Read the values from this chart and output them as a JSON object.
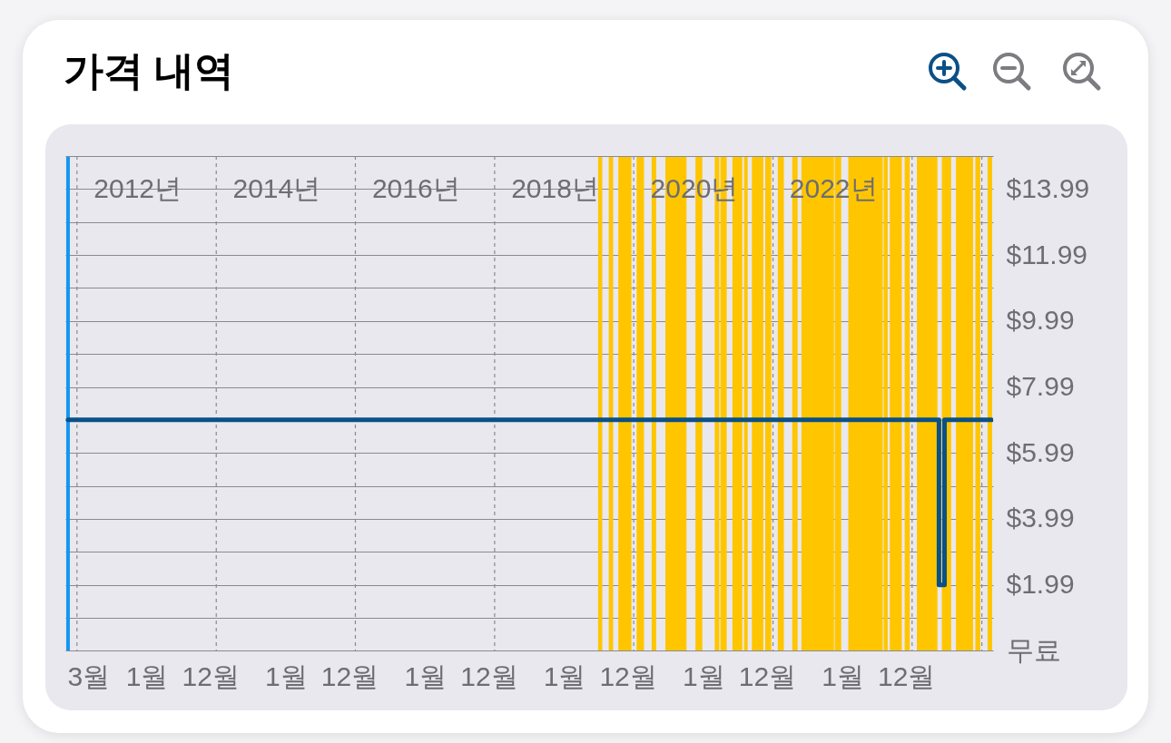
{
  "chart_data": {
    "type": "step",
    "title": "가격 내역",
    "x": [
      "2011-11-15",
      "2024-05-21",
      "2024-06-19",
      "2025-02-22"
    ],
    "values": [
      6.99,
      1.99,
      6.99,
      6.99
    ],
    "color": "#0b5087",
    "xlim": [
      "2011-11-01",
      "2025-03-01"
    ],
    "xticks": [
      {
        "value": "2012-03-01",
        "label": "3월"
      },
      {
        "value": "2013-01-01",
        "label": "1월"
      },
      {
        "value": "2013-12-01",
        "label": "12월"
      },
      {
        "value": "2015-01-01",
        "label": "1월"
      },
      {
        "value": "2015-12-01",
        "label": "12월"
      },
      {
        "value": "2017-01-01",
        "label": "1월"
      },
      {
        "value": "2017-12-01",
        "label": "12월"
      },
      {
        "value": "2019-01-01",
        "label": "1월"
      },
      {
        "value": "2019-12-01",
        "label": "12월"
      },
      {
        "value": "2021-01-01",
        "label": "1월"
      },
      {
        "value": "2021-12-01",
        "label": "12월"
      },
      {
        "value": "2023-01-01",
        "label": "1월"
      },
      {
        "value": "2023-12-01",
        "label": "12월"
      }
    ],
    "x2lim": [
      "2011-11-01",
      "2025-03-01"
    ],
    "x2ticks": [
      {
        "value": "2012-11-12",
        "label": "2012년"
      },
      {
        "value": "2014-11-12",
        "label": "2014년"
      },
      {
        "value": "2016-11-12",
        "label": "2016년"
      },
      {
        "value": "2018-11-12",
        "label": "2018년"
      },
      {
        "value": "2020-11-12",
        "label": "2020년"
      },
      {
        "value": "2022-11-12",
        "label": "2022년"
      }
    ],
    "ylim": [
      0,
      14.99
    ],
    "yticks": [
      {
        "value": 0,
        "label": "무료"
      },
      {
        "value": 0.99,
        "label": null
      },
      {
        "value": 1.99,
        "label": "$1.99"
      },
      {
        "value": 2.99,
        "label": null
      },
      {
        "value": 3.99,
        "label": "$3.99"
      },
      {
        "value": 4.99,
        "label": null
      },
      {
        "value": 5.99,
        "label": "$5.99"
      },
      {
        "value": 6.99,
        "label": null
      },
      {
        "value": 7.99,
        "label": "$7.99"
      },
      {
        "value": 8.99,
        "label": null
      },
      {
        "value": 9.99,
        "label": "$9.99"
      },
      {
        "value": 10.99,
        "label": null
      },
      {
        "value": 11.99,
        "label": "$11.99"
      },
      {
        "value": 12.99,
        "label": null
      },
      {
        "value": 13.99,
        "label": "$13.99"
      }
    ],
    "grid": "y",
    "ref_lines": [
      {
        "axis": "x",
        "value": "2011-11-15",
        "color": "#1296f0"
      },
      {
        "axis": "x",
        "value": "2012-01-01",
        "color": "#8a8a8e",
        "line_style": "dashed"
      },
      {
        "axis": "x",
        "value": "2014-01-01",
        "color": "#8a8a8e",
        "line_style": "dashed"
      },
      {
        "axis": "x",
        "value": "2016-01-01",
        "color": "#8a8a8e",
        "line_style": "dashed"
      },
      {
        "axis": "x",
        "value": "2018-01-01",
        "color": "#8a8a8e",
        "line_style": "dashed"
      },
      {
        "axis": "x",
        "value": "2020-01-01",
        "color": "#8a8a8e",
        "line_style": "dashed"
      },
      {
        "axis": "x",
        "value": "2022-01-01",
        "color": "#8a8a8e",
        "line_style": "dashed"
      },
      {
        "axis": "x",
        "value": "2024-01-01",
        "color": "#8a8a8e",
        "line_style": "dashed"
      },
      {
        "axis": "x",
        "value": "2025-01-01",
        "color": "#8a8a8e",
        "line_style": "dashed"
      }
    ],
    "bands": [
      {
        "axis": "x",
        "from": "2019-06-28",
        "to": "2019-07-20",
        "color": "#ffc600"
      },
      {
        "axis": "x",
        "from": "2019-08-23",
        "to": "2019-09-15",
        "color": "#ffc600"
      },
      {
        "axis": "x",
        "from": "2019-10-12",
        "to": "2019-12-20",
        "color": "#ffc600"
      },
      {
        "axis": "x",
        "from": "2020-01-16",
        "to": "2020-02-24",
        "color": "#ffc600"
      },
      {
        "axis": "x",
        "from": "2020-04-04",
        "to": "2020-04-28",
        "color": "#ffc600"
      },
      {
        "axis": "x",
        "from": "2020-06-15",
        "to": "2020-10-04",
        "color": "#ffc600"
      },
      {
        "axis": "x",
        "from": "2020-11-20",
        "to": "2020-12-26",
        "color": "#ffc600"
      },
      {
        "axis": "x",
        "from": "2021-03-01",
        "to": "2021-03-25",
        "color": "#ffc600"
      },
      {
        "axis": "x",
        "from": "2021-03-31",
        "to": "2021-05-03",
        "color": "#ffc600"
      },
      {
        "axis": "x",
        "from": "2021-06-02",
        "to": "2021-07-24",
        "color": "#ffc600"
      },
      {
        "axis": "x",
        "from": "2021-08-02",
        "to": "2021-08-21",
        "color": "#ffc600"
      },
      {
        "axis": "x",
        "from": "2021-09-12",
        "to": "2021-11-11",
        "color": "#ffc600"
      },
      {
        "axis": "x",
        "from": "2021-11-21",
        "to": "2021-12-23",
        "color": "#ffc600"
      },
      {
        "axis": "x",
        "from": "2022-01-26",
        "to": "2022-02-27",
        "color": "#ffc600"
      },
      {
        "axis": "x",
        "from": "2022-04-12",
        "to": "2022-05-10",
        "color": "#ffc600"
      },
      {
        "axis": "x",
        "from": "2022-05-30",
        "to": "2022-11-17",
        "color": "#ffc600"
      },
      {
        "axis": "x",
        "from": "2022-11-21",
        "to": "2022-12-25",
        "color": "#ffc600"
      },
      {
        "axis": "x",
        "from": "2023-01-31",
        "to": "2023-07-31",
        "color": "#ffc600"
      },
      {
        "axis": "x",
        "from": "2023-08-05",
        "to": "2023-08-26",
        "color": "#ffc600"
      },
      {
        "axis": "x",
        "from": "2023-09-06",
        "to": "2023-11-08",
        "color": "#ffc600"
      },
      {
        "axis": "x",
        "from": "2023-11-23",
        "to": "2023-12-20",
        "color": "#ffc600"
      },
      {
        "axis": "x",
        "from": "2024-01-26",
        "to": "2024-05-13",
        "color": "#ffc600"
      },
      {
        "axis": "x",
        "from": "2024-06-05",
        "to": "2024-07-24",
        "color": "#ffc600"
      },
      {
        "axis": "x",
        "from": "2024-08-18",
        "to": "2024-11-16",
        "color": "#ffc600"
      },
      {
        "axis": "x",
        "from": "2024-11-28",
        "to": "2024-12-24",
        "color": "#ffc600"
      },
      {
        "axis": "x",
        "from": "2025-01-31",
        "to": "2025-02-24",
        "color": "#ffc600"
      }
    ]
  }
}
